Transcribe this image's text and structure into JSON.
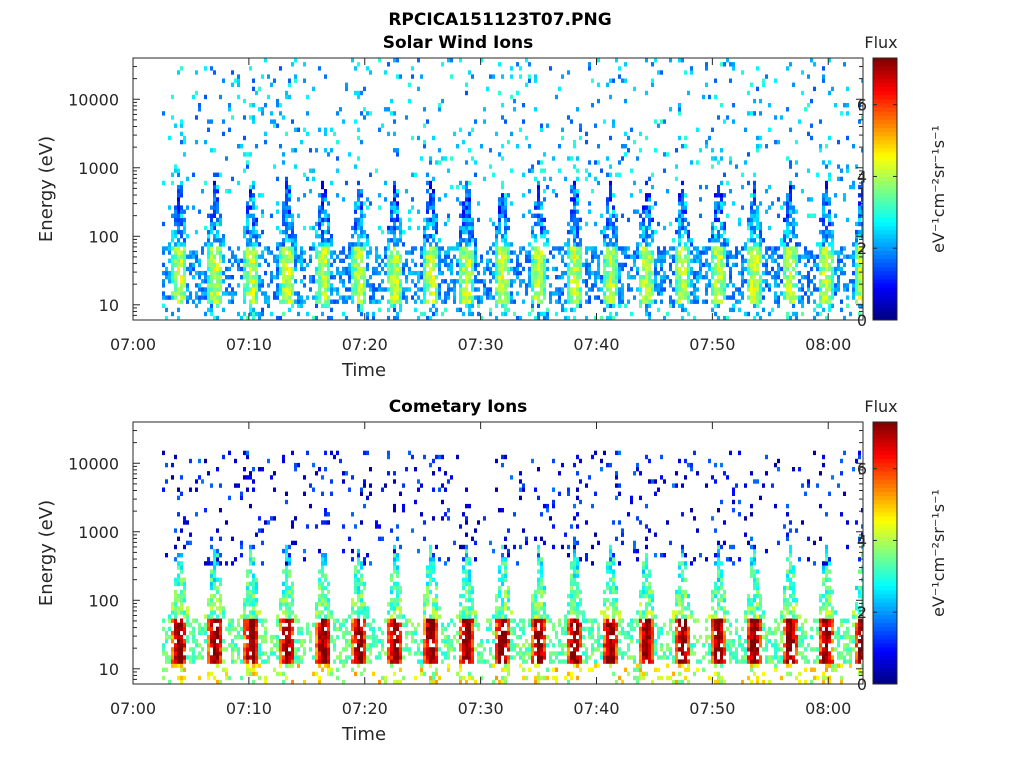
{
  "figure": {
    "title": "RPCICA151123T07.PNG"
  },
  "chart_data": [
    {
      "type": "heatmap",
      "title": "Solar Wind Ions",
      "xlabel": "Time",
      "ylabel": "Energy (eV)",
      "x_ticks": [
        "07:00",
        "07:10",
        "07:20",
        "07:30",
        "07:40",
        "07:50",
        "08:00"
      ],
      "x_range_minutes": [
        0,
        63
      ],
      "data_start_minute": 2.5,
      "y_scale": "log",
      "y_ticks": [
        "10",
        "100",
        "1000",
        "10000"
      ],
      "y_range": [
        6,
        40000
      ],
      "colorbar": {
        "title": "Flux",
        "label": "eV⁻¹cm⁻²sr⁻¹s⁻¹",
        "ticks": [
          "0",
          "2",
          "4",
          "6"
        ],
        "range": [
          0,
          7.3
        ],
        "colormap": "jet"
      },
      "pulse_period_minutes": 3.1,
      "core_energy_band_eV": [
        12,
        60
      ],
      "core_level": 3.5,
      "tail_max_energy_eV": 600,
      "background_level": 2.3,
      "background_range_eV": [
        100,
        35000
      ]
    },
    {
      "type": "heatmap",
      "title": "Cometary Ions",
      "xlabel": "Time",
      "ylabel": "Energy (eV)",
      "x_ticks": [
        "07:00",
        "07:10",
        "07:20",
        "07:30",
        "07:40",
        "07:50",
        "08:00"
      ],
      "x_range_minutes": [
        0,
        63
      ],
      "data_start_minute": 2.5,
      "y_scale": "log",
      "y_ticks": [
        "10",
        "100",
        "1000",
        "10000"
      ],
      "y_range": [
        6,
        40000
      ],
      "colorbar": {
        "title": "Flux",
        "label": "eV⁻¹cm⁻²sr⁻¹s⁻¹",
        "ticks": [
          "0",
          "2",
          "4",
          "6"
        ],
        "range": [
          0,
          7.3
        ],
        "colormap": "jet"
      },
      "pulse_period_minutes": 3.1,
      "core_energy_band_eV": [
        15,
        45
      ],
      "core_level": 6.2,
      "tail_max_energy_eV": 600,
      "background_level": 1.0,
      "background_range_eV": [
        300,
        15000
      ]
    }
  ]
}
